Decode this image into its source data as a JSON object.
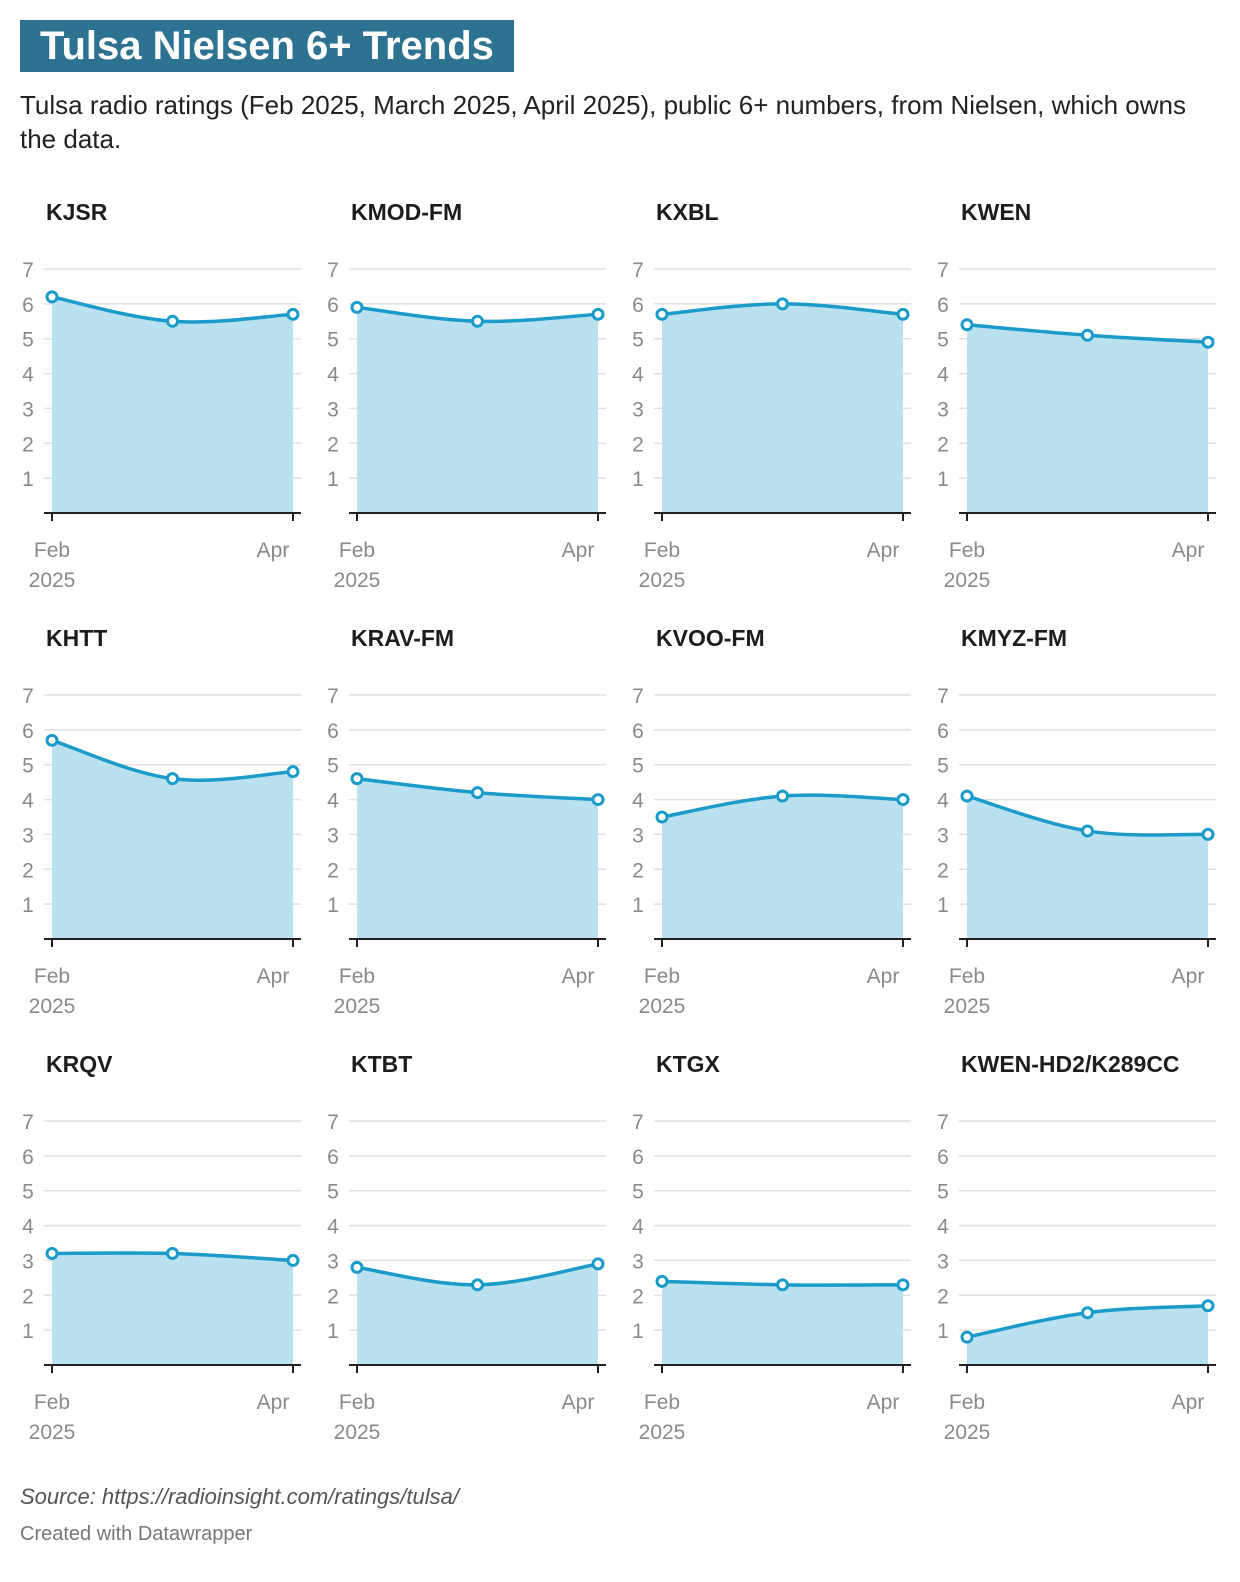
{
  "title": "Tulsa Nielsen 6+ Trends",
  "subtitle": "Tulsa radio ratings (Feb 2025, March 2025, April 2025), public 6+ numbers, from Nielsen, which owns the data.",
  "source": "Source: https://radioinsight.com/ratings/tulsa/",
  "credit": "Created with Datawrapper",
  "colors": {
    "line": "#1a9bc9",
    "area": "#b9e1ef",
    "title_bg": "#2e7291",
    "grid": "#e1e1e1",
    "axis": "#222222"
  },
  "chart_data": [
    {
      "type": "area",
      "title": "KJSR",
      "x": [
        "Feb 2025",
        "Mar 2025",
        "Apr 2025"
      ],
      "values": [
        6.2,
        5.5,
        5.7
      ],
      "ylim": [
        0,
        7
      ],
      "yticks": [
        1,
        2,
        3,
        4,
        5,
        6,
        7
      ],
      "xtick_labels": [
        [
          "Feb",
          "2025"
        ],
        [
          "Apr"
        ]
      ],
      "grid": true
    },
    {
      "type": "area",
      "title": "KMOD-FM",
      "x": [
        "Feb 2025",
        "Mar 2025",
        "Apr 2025"
      ],
      "values": [
        5.9,
        5.5,
        5.7
      ],
      "ylim": [
        0,
        7
      ],
      "yticks": [
        1,
        2,
        3,
        4,
        5,
        6,
        7
      ],
      "xtick_labels": [
        [
          "Feb",
          "2025"
        ],
        [
          "Apr"
        ]
      ],
      "grid": true
    },
    {
      "type": "area",
      "title": "KXBL",
      "x": [
        "Feb 2025",
        "Mar 2025",
        "Apr 2025"
      ],
      "values": [
        5.7,
        6.0,
        5.7
      ],
      "ylim": [
        0,
        7
      ],
      "yticks": [
        1,
        2,
        3,
        4,
        5,
        6,
        7
      ],
      "xtick_labels": [
        [
          "Feb",
          "2025"
        ],
        [
          "Apr"
        ]
      ],
      "grid": true
    },
    {
      "type": "area",
      "title": "KWEN",
      "x": [
        "Feb 2025",
        "Mar 2025",
        "Apr 2025"
      ],
      "values": [
        5.4,
        5.1,
        4.9
      ],
      "ylim": [
        0,
        7
      ],
      "yticks": [
        1,
        2,
        3,
        4,
        5,
        6,
        7
      ],
      "xtick_labels": [
        [
          "Feb",
          "2025"
        ],
        [
          "Apr"
        ]
      ],
      "grid": true
    },
    {
      "type": "area",
      "title": "KHTT",
      "x": [
        "Feb 2025",
        "Mar 2025",
        "Apr 2025"
      ],
      "values": [
        5.7,
        4.6,
        4.8
      ],
      "ylim": [
        0,
        7
      ],
      "yticks": [
        1,
        2,
        3,
        4,
        5,
        6,
        7
      ],
      "xtick_labels": [
        [
          "Feb",
          "2025"
        ],
        [
          "Apr"
        ]
      ],
      "grid": true
    },
    {
      "type": "area",
      "title": "KRAV-FM",
      "x": [
        "Feb 2025",
        "Mar 2025",
        "Apr 2025"
      ],
      "values": [
        4.6,
        4.2,
        4.0
      ],
      "ylim": [
        0,
        7
      ],
      "yticks": [
        1,
        2,
        3,
        4,
        5,
        6,
        7
      ],
      "xtick_labels": [
        [
          "Feb",
          "2025"
        ],
        [
          "Apr"
        ]
      ],
      "grid": true
    },
    {
      "type": "area",
      "title": "KVOO-FM",
      "x": [
        "Feb 2025",
        "Mar 2025",
        "Apr 2025"
      ],
      "values": [
        3.5,
        4.1,
        4.0
      ],
      "ylim": [
        0,
        7
      ],
      "yticks": [
        1,
        2,
        3,
        4,
        5,
        6,
        7
      ],
      "xtick_labels": [
        [
          "Feb",
          "2025"
        ],
        [
          "Apr"
        ]
      ],
      "grid": true
    },
    {
      "type": "area",
      "title": "KMYZ-FM",
      "x": [
        "Feb 2025",
        "Mar 2025",
        "Apr 2025"
      ],
      "values": [
        4.1,
        3.1,
        3.0
      ],
      "ylim": [
        0,
        7
      ],
      "yticks": [
        1,
        2,
        3,
        4,
        5,
        6,
        7
      ],
      "xtick_labels": [
        [
          "Feb",
          "2025"
        ],
        [
          "Apr"
        ]
      ],
      "grid": true
    },
    {
      "type": "area",
      "title": "KRQV",
      "x": [
        "Feb 2025",
        "Mar 2025",
        "Apr 2025"
      ],
      "values": [
        3.2,
        3.2,
        3.0
      ],
      "ylim": [
        0,
        7
      ],
      "yticks": [
        1,
        2,
        3,
        4,
        5,
        6,
        7
      ],
      "xtick_labels": [
        [
          "Feb",
          "2025"
        ],
        [
          "Apr"
        ]
      ],
      "grid": true
    },
    {
      "type": "area",
      "title": "KTBT",
      "x": [
        "Feb 2025",
        "Mar 2025",
        "Apr 2025"
      ],
      "values": [
        2.8,
        2.3,
        2.9
      ],
      "ylim": [
        0,
        7
      ],
      "yticks": [
        1,
        2,
        3,
        4,
        5,
        6,
        7
      ],
      "xtick_labels": [
        [
          "Feb",
          "2025"
        ],
        [
          "Apr"
        ]
      ],
      "grid": true
    },
    {
      "type": "area",
      "title": "KTGX",
      "x": [
        "Feb 2025",
        "Mar 2025",
        "Apr 2025"
      ],
      "values": [
        2.4,
        2.3,
        2.3
      ],
      "ylim": [
        0,
        7
      ],
      "yticks": [
        1,
        2,
        3,
        4,
        5,
        6,
        7
      ],
      "xtick_labels": [
        [
          "Feb",
          "2025"
        ],
        [
          "Apr"
        ]
      ],
      "grid": true
    },
    {
      "type": "area",
      "title": "KWEN-HD2/K289CC",
      "x": [
        "Feb 2025",
        "Mar 2025",
        "Apr 2025"
      ],
      "values": [
        0.8,
        1.5,
        1.7
      ],
      "ylim": [
        0,
        7
      ],
      "yticks": [
        1,
        2,
        3,
        4,
        5,
        6,
        7
      ],
      "xtick_labels": [
        [
          "Feb",
          "2025"
        ],
        [
          "Apr"
        ]
      ],
      "grid": true
    }
  ]
}
